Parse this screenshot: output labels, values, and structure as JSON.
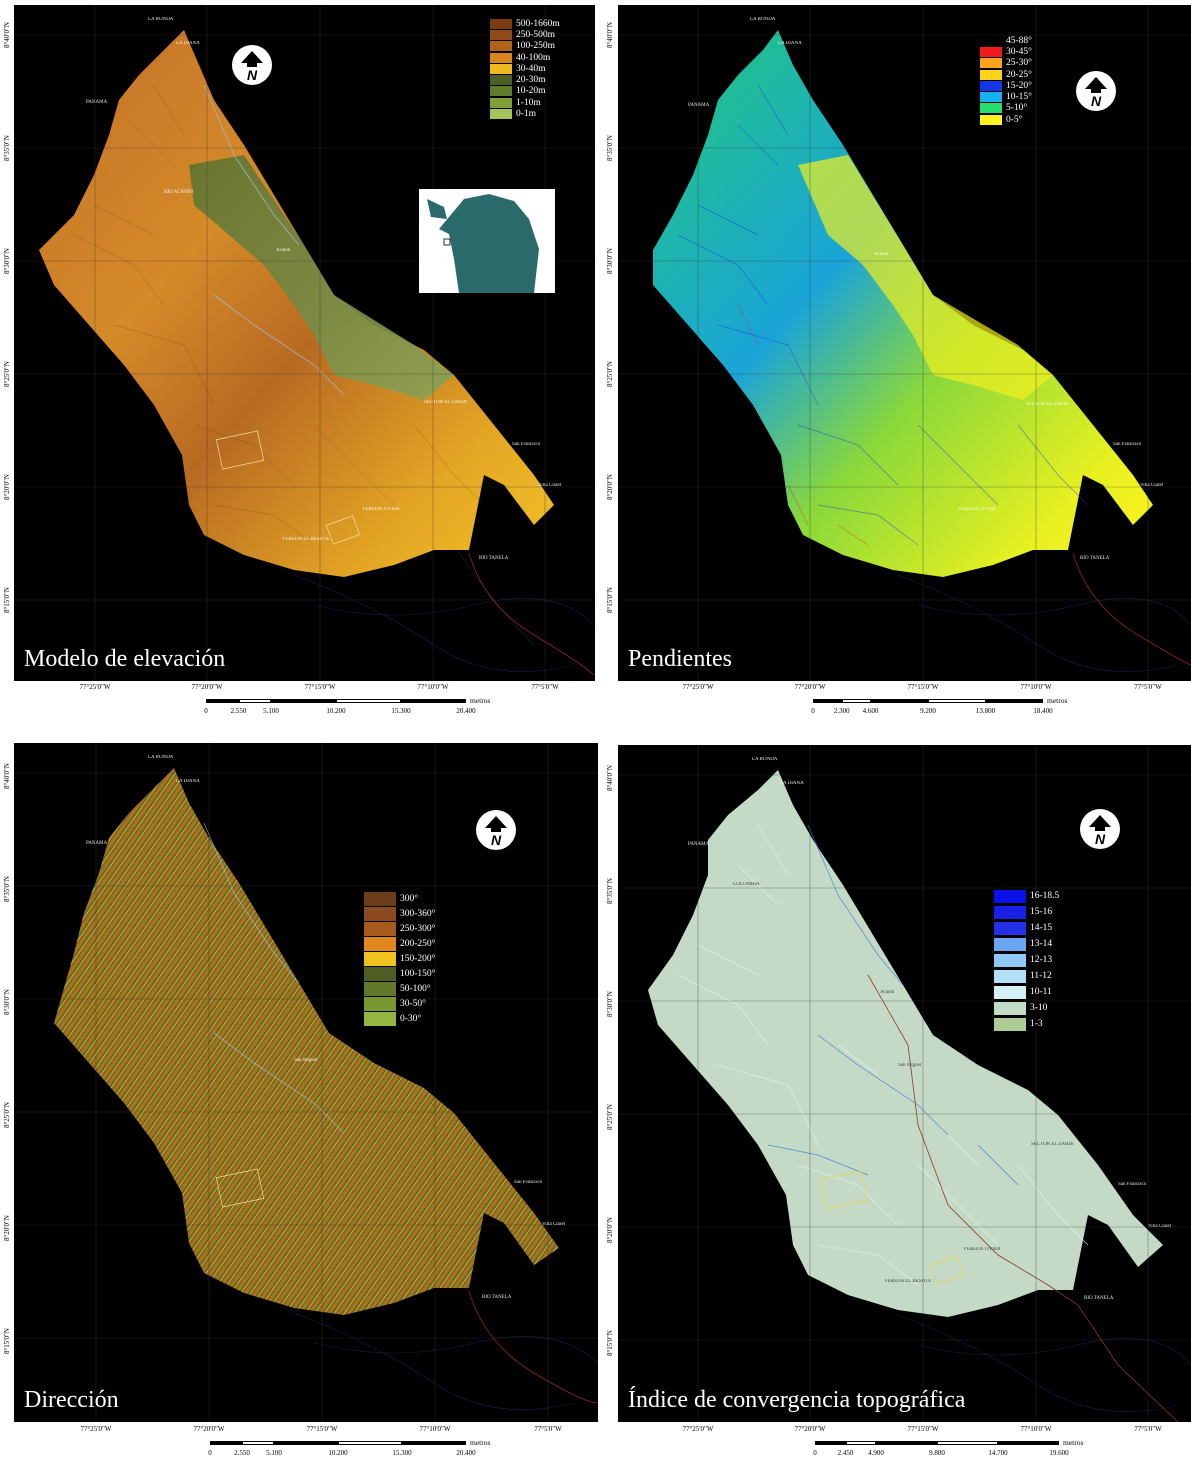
{
  "panels": {
    "elevation": {
      "title": "Modelo de elevación",
      "legend": [
        {
          "label": "500-1660m",
          "color": "#7a3a12"
        },
        {
          "label": "250-500m",
          "color": "#8e4a18"
        },
        {
          "label": "100-250m",
          "color": "#b0621a"
        },
        {
          "label": "40-100m",
          "color": "#d8861d"
        },
        {
          "label": "30-40m",
          "color": "#f0b820"
        },
        {
          "label": "20-30m",
          "color": "#4d5e26"
        },
        {
          "label": "10-20m",
          "color": "#5f7b2c"
        },
        {
          "label": "1-10m",
          "color": "#7f9e3a"
        },
        {
          "label": "0-1m",
          "color": "#a2c45a"
        }
      ]
    },
    "slopes": {
      "title": "Pendientes",
      "legend": [
        {
          "label": "45-88°",
          "color": "#000000"
        },
        {
          "label": "30-45°",
          "color": "#ee1c1c"
        },
        {
          "label": "25-30°",
          "color": "#ffa21c"
        },
        {
          "label": "20-25°",
          "color": "#ffd21a"
        },
        {
          "label": "15-20°",
          "color": "#1438e8"
        },
        {
          "label": "10-15°",
          "color": "#1ab0f0"
        },
        {
          "label": "5-10°",
          "color": "#22e06a"
        },
        {
          "label": "0-5°",
          "color": "#fff21e"
        }
      ]
    },
    "aspect": {
      "title": "Dirección",
      "legend": [
        {
          "label": "300°",
          "color": "#6a3c18"
        },
        {
          "label": "300-360°",
          "color": "#8a4a1e"
        },
        {
          "label": "250-300°",
          "color": "#a65a1c"
        },
        {
          "label": "200-250°",
          "color": "#e0861e"
        },
        {
          "label": "150-200°",
          "color": "#f0c21e"
        },
        {
          "label": "100-150°",
          "color": "#4e5e22"
        },
        {
          "label": "50-100°",
          "color": "#62782a"
        },
        {
          "label": "30-50°",
          "color": "#7a9832"
        },
        {
          "label": "0-30°",
          "color": "#94b640"
        }
      ]
    },
    "convergence": {
      "title": "Índice de convergencia topográfica",
      "legend": [
        {
          "label": "16-18.5",
          "color": "#0a10ea"
        },
        {
          "label": "15-16",
          "color": "#1820e8"
        },
        {
          "label": "14-15",
          "color": "#2430e8"
        },
        {
          "label": "13-14",
          "color": "#6aa6f2"
        },
        {
          "label": "12-13",
          "color": "#8ec8f6"
        },
        {
          "label": "11-12",
          "color": "#b2e0f6"
        },
        {
          "label": "10-11",
          "color": "#d4f0f4"
        },
        {
          "label": "3-10",
          "color": "#c2dcc8"
        },
        {
          "label": "1-3",
          "color": "#aecb96"
        }
      ]
    }
  },
  "latitudes": [
    "8°40'0\"N",
    "8°35'0\"N",
    "8°30'0\"N",
    "8°25'0\"N",
    "8°20'0\"N",
    "8°15'0\"N"
  ],
  "longitudes": [
    "77°25'0\"W",
    "77°20'0\"W",
    "77°15'0\"W",
    "77°10'0\"W",
    "77°5'0\"W"
  ],
  "scales": {
    "elevation": {
      "unit": "metros",
      "ticks": [
        "0",
        "2.550",
        "5.100",
        "10.200",
        "15.300",
        "20.400"
      ]
    },
    "slopes": {
      "unit": "metros",
      "ticks": [
        "0",
        "2.300",
        "4.600",
        "9.200",
        "13.800",
        "18.400"
      ]
    },
    "aspect": {
      "unit": "metros",
      "ticks": [
        "0",
        "2.550",
        "5.100",
        "10.200",
        "15.300",
        "20.400"
      ]
    },
    "convergence": {
      "unit": "metros",
      "ticks": [
        "0",
        "2.450",
        "4.900",
        "9.800",
        "14.700",
        "19.600"
      ]
    }
  },
  "north_arrow": {
    "letter": "N",
    "icon": "north-arrow-icon"
  },
  "places": {
    "la_ronda": "LA RONDA",
    "la_diana": "LA DIANA",
    "panama": "PANAMÁ",
    "colombia": "COLOMBIA",
    "acandi": "Acandí",
    "rio_tanela": "RÍO TANELA",
    "villa_claret": "Villa Claret",
    "san_francisco": "San Francisco",
    "sector_el_zardi": "SECTOR EL ZARDI",
    "vereda_el_besote": "VEREDA EL BESOTE",
    "vereda_tivier": "VEREDA TIVIER",
    "rio_acandi": "RÍO ACANDÍ",
    "san_miguel": "San Miguel",
    "chugandi": "Chugandí"
  }
}
